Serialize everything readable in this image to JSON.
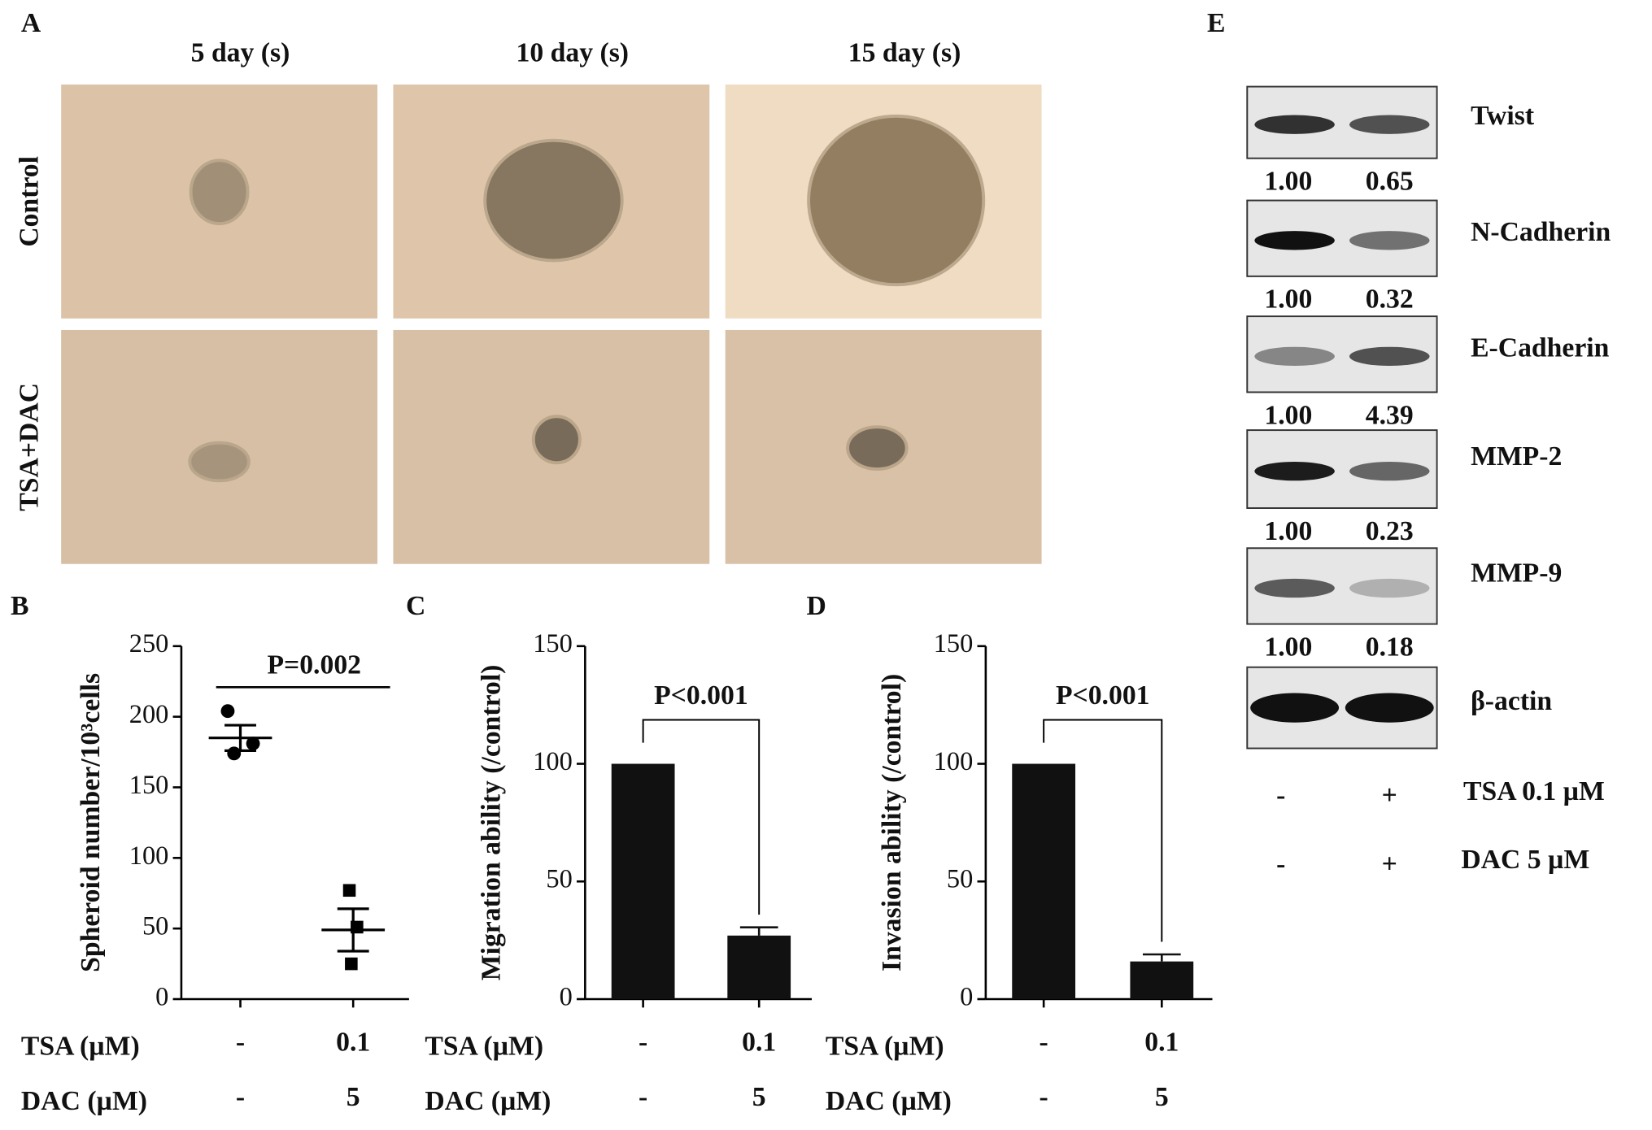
{
  "chart_data": [
    {
      "type": "scatter",
      "label": "B",
      "ylabel": "Spheroid number/10³cells",
      "points": [
        [
          204,
          181,
          174
        ],
        [
          77,
          51,
          25
        ]
      ],
      "markers": [
        "circle",
        "square"
      ],
      "means": [
        185,
        49
      ],
      "errors": [
        9,
        15
      ],
      "color": "#000000",
      "ylim": [
        0,
        250
      ],
      "yticks": [
        0,
        50,
        100,
        150,
        200,
        250
      ],
      "annotation": "P=0.002",
      "treatment_rows": [
        {
          "label": "TSA  (µM)",
          "values": [
            "-",
            "0.1"
          ]
        },
        {
          "label": "DAC (µM)",
          "values": [
            "-",
            "5"
          ]
        }
      ]
    },
    {
      "type": "bar",
      "label": "C",
      "ylabel": "Migration ability (/control)",
      "values": [
        100,
        27
      ],
      "errors": [
        0,
        3.5
      ],
      "color": "#111111",
      "ylim": [
        0,
        150
      ],
      "yticks": [
        0,
        50,
        100,
        150
      ],
      "annotation": "P<0.001",
      "treatment_rows": [
        {
          "label": "TSA  (µM)",
          "values": [
            "-",
            "0.1"
          ]
        },
        {
          "label": "DAC (µM)",
          "values": [
            "-",
            "5"
          ]
        }
      ]
    },
    {
      "type": "bar",
      "label": "D",
      "ylabel": "Invasion ability (/control)",
      "values": [
        100,
        16
      ],
      "errors": [
        0,
        3
      ],
      "color": "#111111",
      "ylim": [
        0,
        150
      ],
      "yticks": [
        0,
        50,
        100,
        150
      ],
      "annotation": "P<0.001",
      "treatment_rows": [
        {
          "label": "TSA  (µM)",
          "values": [
            "-",
            "0.1"
          ]
        },
        {
          "label": "DAC (µM)",
          "values": [
            "-",
            "5"
          ]
        }
      ]
    }
  ],
  "panel_a": {
    "label": "A",
    "columns": [
      "5 day (s)",
      "10 day (s)",
      "15 day (s)"
    ],
    "rows": [
      "Control",
      "TSA+DAC"
    ]
  },
  "panel_e": {
    "label": "E",
    "proteins": [
      {
        "name": "Twist",
        "ratios": [
          "1.00",
          "0.65"
        ]
      },
      {
        "name": "N-Cadherin",
        "ratios": [
          "1.00",
          "0.32"
        ]
      },
      {
        "name": "E-Cadherin",
        "ratios": [
          "1.00",
          "4.39"
        ]
      },
      {
        "name": "MMP-2",
        "ratios": [
          "1.00",
          "0.23"
        ]
      },
      {
        "name": "MMP-9",
        "ratios": [
          "1.00",
          "0.18"
        ]
      },
      {
        "name": "β-actin"
      }
    ],
    "treatments": [
      {
        "label": "TSA 0.1 µM",
        "values": [
          "-",
          "+"
        ]
      },
      {
        "label": "DAC 5 µM",
        "values": [
          "-",
          "+"
        ]
      }
    ]
  }
}
